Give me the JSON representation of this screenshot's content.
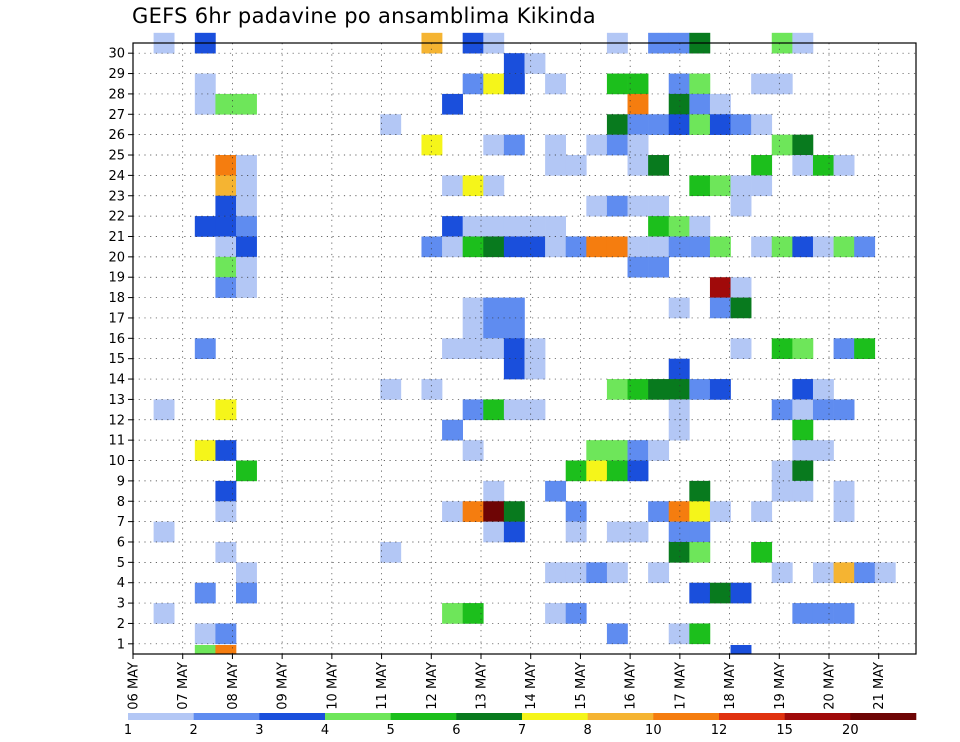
{
  "chart_data": {
    "type": "heatmap",
    "title": "GEFS 6hr padavine po ansamblima Kikinda",
    "y_ticks": [
      "1",
      "2",
      "3",
      "4",
      "5",
      "6",
      "7",
      "8",
      "9",
      "10",
      "11",
      "12",
      "13",
      "14",
      "15",
      "16",
      "17",
      "18",
      "19",
      "20",
      "21",
      "22",
      "23",
      "24",
      "25",
      "26",
      "27",
      "28",
      "29",
      "30"
    ],
    "x_ticks": [
      "06 MAY",
      "07 MAY",
      "08 MAY",
      "09 MAY",
      "10 MAY",
      "11 MAY",
      "12 MAY",
      "13 MAY",
      "14 MAY",
      "15 MAY",
      "16 MAY",
      "17 MAY",
      "18 MAY",
      "19 MAY",
      "20 MAY",
      "21 MAY"
    ],
    "grid": true,
    "colorbar": {
      "labels": [
        "1",
        "2",
        "3",
        "4",
        "5",
        "6",
        "7",
        "8",
        "10",
        "12",
        "15",
        "20"
      ],
      "colors": [
        "#b3c7f5",
        "#5f8cf0",
        "#1a4fdc",
        "#6ee65a",
        "#1cbf1c",
        "#087a1e",
        "#f5f51a",
        "#f5b432",
        "#f57d0f",
        "#e0320f",
        "#a00a0a",
        "#6e0505"
      ]
    },
    "cells": [
      [
        1,
        30,
        1
      ],
      [
        3,
        30,
        3
      ],
      [
        14,
        30,
        8
      ],
      [
        16,
        30,
        3
      ],
      [
        17,
        30,
        1
      ],
      [
        23,
        30,
        1
      ],
      [
        25,
        30,
        2
      ],
      [
        26,
        30,
        2
      ],
      [
        27,
        30,
        6
      ],
      [
        31,
        30,
        4
      ],
      [
        32,
        30,
        1
      ],
      [
        18,
        29,
        3
      ],
      [
        19,
        29,
        1
      ],
      [
        3,
        28,
        1
      ],
      [
        16,
        28,
        2
      ],
      [
        17,
        28,
        7
      ],
      [
        18,
        28,
        3
      ],
      [
        20,
        28,
        1
      ],
      [
        23,
        28,
        5
      ],
      [
        24,
        28,
        5
      ],
      [
        26,
        28,
        2
      ],
      [
        27,
        28,
        4
      ],
      [
        30,
        28,
        1
      ],
      [
        31,
        28,
        1
      ],
      [
        3,
        27,
        1
      ],
      [
        4,
        27,
        4
      ],
      [
        5,
        27,
        4
      ],
      [
        15,
        27,
        3
      ],
      [
        24,
        27,
        9
      ],
      [
        26,
        27,
        6
      ],
      [
        27,
        27,
        2
      ],
      [
        28,
        27,
        1
      ],
      [
        12,
        26,
        1
      ],
      [
        23,
        26,
        6
      ],
      [
        24,
        26,
        2
      ],
      [
        25,
        26,
        2
      ],
      [
        26,
        26,
        3
      ],
      [
        27,
        26,
        4
      ],
      [
        28,
        26,
        3
      ],
      [
        29,
        26,
        2
      ],
      [
        30,
        26,
        1
      ],
      [
        14,
        25,
        7
      ],
      [
        17,
        25,
        1
      ],
      [
        18,
        25,
        2
      ],
      [
        20,
        25,
        1
      ],
      [
        22,
        25,
        1
      ],
      [
        24,
        25,
        1
      ],
      [
        23,
        25,
        2
      ],
      [
        24,
        25,
        1
      ],
      [
        31,
        25,
        4
      ],
      [
        32,
        25,
        6
      ],
      [
        4,
        24,
        9
      ],
      [
        5,
        24,
        1
      ],
      [
        20,
        24,
        1
      ],
      [
        21,
        24,
        1
      ],
      [
        24,
        24,
        1
      ],
      [
        25,
        24,
        6
      ],
      [
        30,
        24,
        5
      ],
      [
        32,
        24,
        1
      ],
      [
        33,
        24,
        5
      ],
      [
        34,
        24,
        1
      ],
      [
        4,
        23,
        8
      ],
      [
        5,
        23,
        1
      ],
      [
        15,
        23,
        1
      ],
      [
        16,
        23,
        7
      ],
      [
        17,
        23,
        1
      ],
      [
        27,
        23,
        5
      ],
      [
        28,
        23,
        4
      ],
      [
        29,
        23,
        1
      ],
      [
        30,
        23,
        1
      ],
      [
        4,
        22,
        3
      ],
      [
        5,
        22,
        1
      ],
      [
        22,
        22,
        1
      ],
      [
        23,
        22,
        2
      ],
      [
        24,
        22,
        1
      ],
      [
        25,
        22,
        1
      ],
      [
        29,
        22,
        1
      ],
      [
        3,
        21,
        3
      ],
      [
        4,
        21,
        3
      ],
      [
        5,
        21,
        2
      ],
      [
        15,
        21,
        3
      ],
      [
        16,
        21,
        1
      ],
      [
        17,
        21,
        1
      ],
      [
        18,
        21,
        1
      ],
      [
        19,
        21,
        1
      ],
      [
        20,
        21,
        1
      ],
      [
        25,
        21,
        5
      ],
      [
        26,
        21,
        4
      ],
      [
        27,
        21,
        1
      ],
      [
        4,
        20,
        1
      ],
      [
        5,
        20,
        3
      ],
      [
        14,
        20,
        2
      ],
      [
        15,
        20,
        1
      ],
      [
        16,
        20,
        5
      ],
      [
        17,
        20,
        6
      ],
      [
        18,
        20,
        3
      ],
      [
        19,
        20,
        3
      ],
      [
        20,
        20,
        1
      ],
      [
        21,
        20,
        2
      ],
      [
        22,
        20,
        9
      ],
      [
        23,
        20,
        9
      ],
      [
        24,
        20,
        1
      ],
      [
        25,
        20,
        1
      ],
      [
        26,
        20,
        2
      ],
      [
        27,
        20,
        2
      ],
      [
        28,
        20,
        4
      ],
      [
        30,
        20,
        1
      ],
      [
        31,
        20,
        4
      ],
      [
        32,
        20,
        3
      ],
      [
        33,
        20,
        1
      ],
      [
        34,
        20,
        4
      ],
      [
        35,
        20,
        2
      ],
      [
        4,
        19,
        4
      ],
      [
        5,
        19,
        1
      ],
      [
        24,
        19,
        2
      ],
      [
        25,
        19,
        2
      ],
      [
        4,
        18,
        2
      ],
      [
        5,
        18,
        1
      ],
      [
        28,
        18,
        11
      ],
      [
        29,
        18,
        1
      ],
      [
        16,
        17,
        1
      ],
      [
        17,
        17,
        2
      ],
      [
        18,
        17,
        2
      ],
      [
        26,
        17,
        1
      ],
      [
        28,
        17,
        2
      ],
      [
        29,
        17,
        6
      ],
      [
        16,
        16,
        1
      ],
      [
        17,
        16,
        2
      ],
      [
        18,
        16,
        2
      ],
      [
        3,
        15,
        2
      ],
      [
        15,
        15,
        1
      ],
      [
        16,
        15,
        1
      ],
      [
        17,
        15,
        1
      ],
      [
        18,
        15,
        3
      ],
      [
        19,
        15,
        1
      ],
      [
        29,
        15,
        1
      ],
      [
        31,
        15,
        5
      ],
      [
        32,
        15,
        4
      ],
      [
        34,
        15,
        2
      ],
      [
        35,
        15,
        5
      ],
      [
        18,
        14,
        3
      ],
      [
        19,
        14,
        1
      ],
      [
        26,
        14,
        3
      ],
      [
        12,
        13,
        1
      ],
      [
        14,
        13,
        1
      ],
      [
        23,
        13,
        4
      ],
      [
        24,
        13,
        5
      ],
      [
        25,
        13,
        6
      ],
      [
        26,
        13,
        6
      ],
      [
        27,
        13,
        2
      ],
      [
        28,
        13,
        3
      ],
      [
        32,
        13,
        3
      ],
      [
        33,
        13,
        1
      ],
      [
        1,
        12,
        1
      ],
      [
        4,
        12,
        7
      ],
      [
        16,
        12,
        2
      ],
      [
        17,
        12,
        5
      ],
      [
        18,
        12,
        1
      ],
      [
        19,
        12,
        1
      ],
      [
        26,
        12,
        1
      ],
      [
        31,
        12,
        2
      ],
      [
        32,
        12,
        1
      ],
      [
        33,
        12,
        2
      ],
      [
        34,
        12,
        2
      ],
      [
        15,
        11,
        2
      ],
      [
        26,
        11,
        1
      ],
      [
        32,
        11,
        5
      ],
      [
        3,
        10,
        7
      ],
      [
        4,
        10,
        3
      ],
      [
        16,
        10,
        1
      ],
      [
        22,
        10,
        4
      ],
      [
        23,
        10,
        4
      ],
      [
        24,
        10,
        2
      ],
      [
        25,
        10,
        1
      ],
      [
        32,
        10,
        1
      ],
      [
        33,
        10,
        1
      ],
      [
        5,
        9,
        5
      ],
      [
        21,
        9,
        5
      ],
      [
        22,
        9,
        7
      ],
      [
        23,
        9,
        5
      ],
      [
        24,
        9,
        3
      ],
      [
        31,
        9,
        1
      ],
      [
        32,
        9,
        6
      ],
      [
        4,
        8,
        3
      ],
      [
        17,
        8,
        1
      ],
      [
        20,
        8,
        2
      ],
      [
        27,
        8,
        6
      ],
      [
        31,
        8,
        1
      ],
      [
        32,
        8,
        1
      ],
      [
        34,
        8,
        1
      ],
      [
        4,
        7,
        1
      ],
      [
        15,
        7,
        1
      ],
      [
        16,
        7,
        9
      ],
      [
        17,
        7,
        12
      ],
      [
        18,
        7,
        6
      ],
      [
        21,
        7,
        2
      ],
      [
        25,
        7,
        2
      ],
      [
        26,
        7,
        9
      ],
      [
        27,
        7,
        7
      ],
      [
        28,
        7,
        1
      ],
      [
        30,
        7,
        1
      ],
      [
        34,
        7,
        1
      ],
      [
        1,
        6,
        1
      ],
      [
        17,
        6,
        1
      ],
      [
        18,
        6,
        3
      ],
      [
        21,
        6,
        1
      ],
      [
        23,
        6,
        1
      ],
      [
        24,
        6,
        1
      ],
      [
        26,
        6,
        2
      ],
      [
        27,
        6,
        2
      ],
      [
        4,
        5,
        1
      ],
      [
        12,
        5,
        1
      ],
      [
        26,
        5,
        6
      ],
      [
        27,
        5,
        4
      ],
      [
        30,
        5,
        5
      ],
      [
        5,
        4,
        1
      ],
      [
        20,
        4,
        1
      ],
      [
        21,
        4,
        1
      ],
      [
        22,
        4,
        2
      ],
      [
        23,
        4,
        1
      ],
      [
        25,
        4,
        1
      ],
      [
        31,
        4,
        1
      ],
      [
        33,
        4,
        1
      ],
      [
        34,
        4,
        8
      ],
      [
        35,
        4,
        2
      ],
      [
        36,
        4,
        1
      ],
      [
        3,
        3,
        2
      ],
      [
        5,
        3,
        2
      ],
      [
        27,
        3,
        3
      ],
      [
        28,
        3,
        6
      ],
      [
        29,
        3,
        3
      ],
      [
        1,
        2,
        1
      ],
      [
        15,
        2,
        4
      ],
      [
        16,
        2,
        5
      ],
      [
        20,
        2,
        1
      ],
      [
        21,
        2,
        2
      ],
      [
        32,
        2,
        2
      ],
      [
        33,
        2,
        2
      ],
      [
        34,
        2,
        2
      ],
      [
        3,
        1,
        1
      ],
      [
        4,
        1,
        2
      ],
      [
        23,
        1,
        2
      ],
      [
        26,
        1,
        1
      ],
      [
        27,
        1,
        5
      ],
      [
        3,
        0,
        4
      ],
      [
        4,
        0,
        9
      ],
      [
        29,
        0,
        3
      ]
    ]
  }
}
